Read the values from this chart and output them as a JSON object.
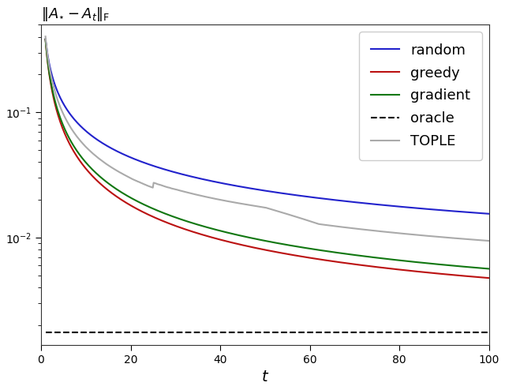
{
  "title": "$\\|A_{\\star} - A_t\\|_{\\mathrm{F}}$",
  "xlabel": "$t$",
  "xlim": [
    0,
    100
  ],
  "ylim": [
    0.0014,
    0.5
  ],
  "colors": {
    "random": "#2222cc",
    "greedy": "#bb1111",
    "gradient": "#117711",
    "oracle": "#000000",
    "tople": "#aaaaaa"
  },
  "legend_labels": [
    "random",
    "greedy",
    "gradient",
    "oracle",
    "TOPLE"
  ],
  "figsize": [
    6.4,
    4.94
  ],
  "dpi": 100,
  "oracle_val": 0.00175,
  "title_fontsize": 13,
  "legend_fontsize": 13,
  "xlabel_fontsize": 14
}
